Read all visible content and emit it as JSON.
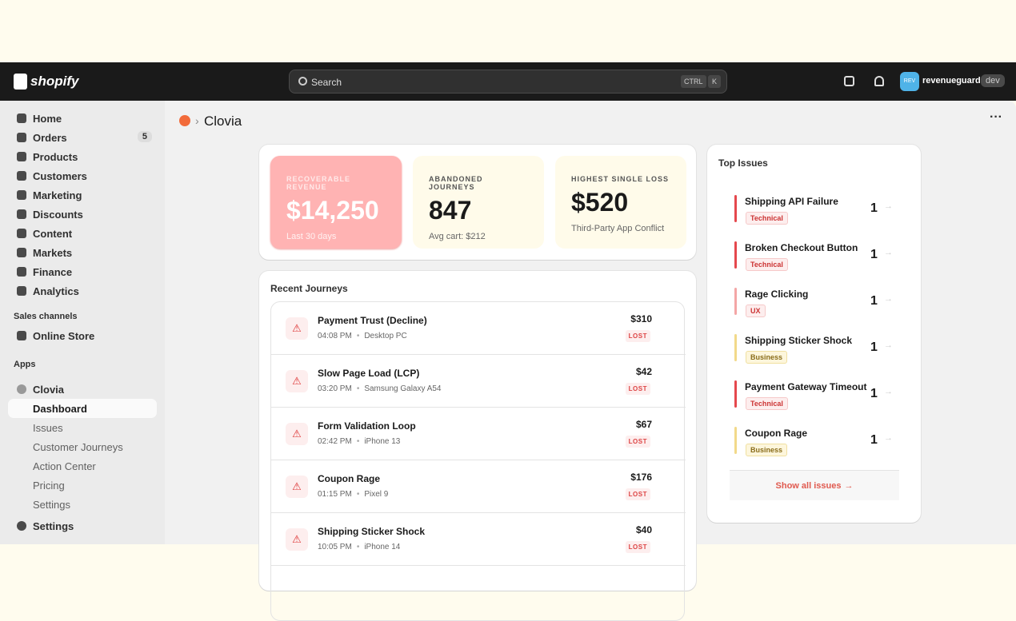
{
  "header": {
    "logo": "shopify",
    "search": "Search",
    "keys": [
      "CTRL",
      "K"
    ],
    "avatar": "REV",
    "store": "revenueguard",
    "badge": "dev"
  },
  "sidebar": {
    "items": [
      {
        "label": "Home"
      },
      {
        "label": "Orders",
        "badge": "5"
      },
      {
        "label": "Products"
      },
      {
        "label": "Customers"
      },
      {
        "label": "Marketing"
      },
      {
        "label": "Discounts"
      },
      {
        "label": "Content"
      },
      {
        "label": "Markets"
      },
      {
        "label": "Finance"
      },
      {
        "label": "Analytics"
      }
    ],
    "sales_channels": "Sales channels",
    "online_store": "Online Store",
    "apps": "Apps",
    "app": "Clovia",
    "app_items": [
      "Dashboard",
      "Issues",
      "Customer Journeys",
      "Action Center",
      "Pricing",
      "Settings"
    ],
    "settings": "Settings"
  },
  "breadcrumb": "Clovia",
  "stats": [
    {
      "label": "RECOVERABLE REVENUE",
      "value": "$14,250",
      "sub": "Last 30 days"
    },
    {
      "label": "ABANDONED JOURNEYS",
      "value": "847",
      "sub": "Avg cart: $212"
    },
    {
      "label": "HIGHEST SINGLE LOSS",
      "value": "$520",
      "sub": "Third-Party App Conflict"
    }
  ],
  "journeys": {
    "title": "Recent Journeys",
    "rows": [
      {
        "name": "Payment Trust (Decline)",
        "time": "04:08 PM",
        "device": "Desktop PC",
        "amount": "$310",
        "status": "LOST"
      },
      {
        "name": "Slow Page Load (LCP)",
        "time": "03:20 PM",
        "device": "Samsung Galaxy A54",
        "amount": "$42",
        "status": "LOST"
      },
      {
        "name": "Form Validation Loop",
        "time": "02:42 PM",
        "device": "iPhone 13",
        "amount": "$67",
        "status": "LOST"
      },
      {
        "name": "Coupon Rage",
        "time": "01:15 PM",
        "device": "Pixel 9",
        "amount": "$176",
        "status": "LOST"
      },
      {
        "name": "Shipping Sticker Shock",
        "time": "10:05 PM",
        "device": "iPhone 14",
        "amount": "$40",
        "status": "LOST"
      }
    ]
  },
  "issues": {
    "title": "Top Issues",
    "rows": [
      {
        "name": "Shipping API Failure",
        "tag": "Technical",
        "count": "1",
        "color": "#e5484d"
      },
      {
        "name": "Broken Checkout Button",
        "tag": "Technical",
        "count": "1",
        "color": "#e5484d"
      },
      {
        "name": "Rage Clicking",
        "tag": "UX",
        "count": "1",
        "color": "#f4a6a6"
      },
      {
        "name": "Shipping Sticker Shock",
        "tag": "Business",
        "count": "1",
        "color": "#f2d98a"
      },
      {
        "name": "Payment Gateway Timeout",
        "tag": "Technical",
        "count": "1",
        "color": "#e5484d"
      },
      {
        "name": "Coupon Rage",
        "tag": "Business",
        "count": "1",
        "color": "#f2d98a"
      }
    ],
    "more": "Show all issues"
  }
}
